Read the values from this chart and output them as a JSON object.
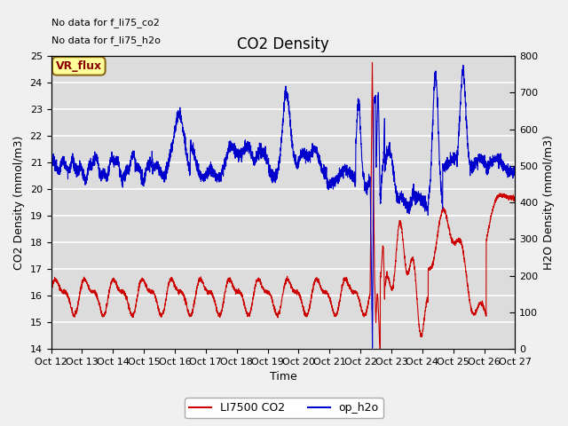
{
  "title": "CO2 Density",
  "xlabel": "Time",
  "ylabel_left": "CO2 Density (mmol/m3)",
  "ylabel_right": "H2O Density (mmol/m3)",
  "ylim_left": [
    14.0,
    25.0
  ],
  "ylim_right": [
    0,
    800
  ],
  "yticks_left": [
    14.0,
    15.0,
    16.0,
    17.0,
    18.0,
    19.0,
    20.0,
    21.0,
    22.0,
    23.0,
    24.0,
    25.0
  ],
  "yticks_right": [
    0,
    100,
    200,
    300,
    400,
    500,
    600,
    700,
    800
  ],
  "xtick_labels": [
    "Oct 12",
    "Oct 13",
    "Oct 14",
    "Oct 15",
    "Oct 16",
    "Oct 17",
    "Oct 18",
    "Oct 19",
    "Oct 20",
    "Oct 21",
    "Oct 22",
    "Oct 23",
    "Oct 24",
    "Oct 25",
    "Oct 26",
    "Oct 27"
  ],
  "annotations": [
    "No data for f_li75_co2",
    "No data for f_li75_h2o"
  ],
  "legend_label_co2": "LI7500 CO2",
  "legend_label_h2o": "op_h2o",
  "co2_color": "#cc0000",
  "h2o_color": "#0000cc",
  "bg_color": "#dcdcdc",
  "grid_color": "#ffffff",
  "fig_bg_color": "#f0f0f0",
  "vr_flux_label": "VR_flux",
  "vr_flux_bg": "#ffff99",
  "vr_flux_border": "#8b6914",
  "right_tick_style": "dash"
}
